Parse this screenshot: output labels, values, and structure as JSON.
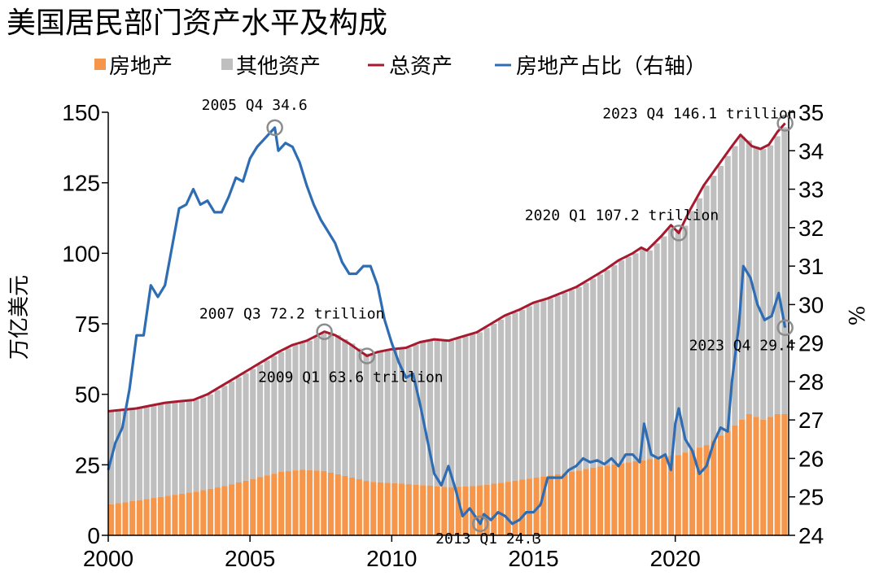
{
  "chart_data": {
    "type": "bar",
    "title": "美国居民部门资产水平及构成",
    "legend": {
      "position": "top",
      "items": [
        {
          "label": "房地产",
          "color": "#F5964B",
          "marker": "square"
        },
        {
          "label": "其他资产",
          "color": "#BFBFBF",
          "marker": "square"
        },
        {
          "label": "总资产",
          "color": "#A6192E",
          "marker": "line"
        },
        {
          "label": "房地产占比（右轴）",
          "color": "#2E6DB4",
          "marker": "line"
        }
      ]
    },
    "ylabel_left": "万亿美元",
    "ylabel_right": "%",
    "ylim_left": [
      0,
      150
    ],
    "ylim_right": [
      24,
      35
    ],
    "xlim": [
      2000,
      2024
    ],
    "xticks": [
      "2000",
      "2005",
      "2010",
      "2015",
      "2020"
    ],
    "yticks_left": [
      "0",
      "25",
      "50",
      "75",
      "100",
      "125",
      "150"
    ],
    "yticks_right": [
      "24",
      "25",
      "26",
      "27",
      "28",
      "29",
      "30",
      "31",
      "32",
      "33",
      "34",
      "35"
    ],
    "annotations": [
      {
        "text": "2005 Q4 34.6",
        "x": 2005.875,
        "y": 34.6,
        "axis": "right"
      },
      {
        "text": "2007 Q3 72.2 trillion",
        "x": 2007.625,
        "y": 72.2,
        "axis": "left"
      },
      {
        "text": "2009 Q1 63.6 trillion",
        "x": 2009.125,
        "y": 63.6,
        "axis": "left"
      },
      {
        "text": "2013 Q1 24.3",
        "x": 2013.125,
        "y": 24.3,
        "axis": "right"
      },
      {
        "text": "2020 Q1 107.2 trillion",
        "x": 2020.125,
        "y": 107.2,
        "axis": "left"
      },
      {
        "text": "2023 Q4 146.1 trillion",
        "x": 2023.875,
        "y": 146.1,
        "axis": "left"
      },
      {
        "text": "2023 Q4 29.4",
        "x": 2023.875,
        "y": 29.4,
        "axis": "right"
      }
    ],
    "series": [
      {
        "name": "房地产",
        "axis": "left",
        "points": [
          [
            2000,
            11
          ],
          [
            2001,
            12.5
          ],
          [
            2002,
            14
          ],
          [
            2003,
            15.5
          ],
          [
            2004,
            17.5
          ],
          [
            2005,
            20
          ],
          [
            2006,
            22.5
          ],
          [
            2006.75,
            23.3
          ],
          [
            2007.5,
            22.8
          ],
          [
            2008.5,
            20.5
          ],
          [
            2009.125,
            19
          ],
          [
            2010,
            18.5
          ],
          [
            2011,
            17.8
          ],
          [
            2012,
            17
          ],
          [
            2013.125,
            17.8
          ],
          [
            2014,
            19
          ],
          [
            2015,
            20.5
          ],
          [
            2016,
            22
          ],
          [
            2017,
            24
          ],
          [
            2018,
            25.5
          ],
          [
            2019,
            27
          ],
          [
            2020,
            28.5
          ],
          [
            2021,
            32
          ],
          [
            2021.75,
            37
          ],
          [
            2022.5,
            43
          ],
          [
            2023,
            41
          ],
          [
            2023.5,
            43
          ],
          [
            2023.875,
            43
          ]
        ]
      },
      {
        "name": "总资产",
        "axis": "left",
        "points": [
          [
            2000,
            44
          ],
          [
            2000.5,
            44.5
          ],
          [
            2001,
            45
          ],
          [
            2001.5,
            46
          ],
          [
            2002,
            47
          ],
          [
            2002.5,
            47.5
          ],
          [
            2003,
            48
          ],
          [
            2003.5,
            50
          ],
          [
            2004,
            53
          ],
          [
            2004.5,
            56
          ],
          [
            2005,
            59
          ],
          [
            2005.5,
            62
          ],
          [
            2006,
            65
          ],
          [
            2006.5,
            67.5
          ],
          [
            2007,
            69
          ],
          [
            2007.625,
            72.2
          ],
          [
            2008,
            71
          ],
          [
            2008.5,
            68
          ],
          [
            2009.125,
            63.6
          ],
          [
            2009.5,
            65
          ],
          [
            2010,
            66
          ],
          [
            2010.5,
            66.5
          ],
          [
            2011,
            68.5
          ],
          [
            2011.5,
            69.5
          ],
          [
            2012,
            69
          ],
          [
            2012.5,
            70.5
          ],
          [
            2013,
            72
          ],
          [
            2013.5,
            75
          ],
          [
            2014,
            78
          ],
          [
            2014.5,
            80
          ],
          [
            2015,
            82.5
          ],
          [
            2015.5,
            84
          ],
          [
            2016,
            86
          ],
          [
            2016.5,
            88
          ],
          [
            2017,
            91
          ],
          [
            2017.5,
            94
          ],
          [
            2018,
            97.5
          ],
          [
            2018.5,
            100
          ],
          [
            2018.8,
            102
          ],
          [
            2019,
            101
          ],
          [
            2019.5,
            106
          ],
          [
            2019.85,
            110
          ],
          [
            2020.125,
            107.2
          ],
          [
            2020.5,
            115
          ],
          [
            2021,
            124
          ],
          [
            2021.5,
            131
          ],
          [
            2022,
            138
          ],
          [
            2022.3,
            142
          ],
          [
            2022.7,
            138
          ],
          [
            2023,
            137
          ],
          [
            2023.3,
            138.5
          ],
          [
            2023.6,
            143
          ],
          [
            2023.875,
            146.1
          ]
        ]
      },
      {
        "name": "房地产占比（右轴）",
        "axis": "right",
        "points": [
          [
            2000,
            25.7
          ],
          [
            2000.25,
            26.4
          ],
          [
            2000.5,
            26.8
          ],
          [
            2000.75,
            27.8
          ],
          [
            2001,
            29.2
          ],
          [
            2001.25,
            29.2
          ],
          [
            2001.5,
            30.5
          ],
          [
            2001.75,
            30.2
          ],
          [
            2002,
            30.5
          ],
          [
            2002.25,
            31.5
          ],
          [
            2002.5,
            32.5
          ],
          [
            2002.75,
            32.6
          ],
          [
            2003,
            33.0
          ],
          [
            2003.25,
            32.6
          ],
          [
            2003.5,
            32.7
          ],
          [
            2003.75,
            32.4
          ],
          [
            2004,
            32.4
          ],
          [
            2004.25,
            32.8
          ],
          [
            2004.5,
            33.3
          ],
          [
            2004.75,
            33.2
          ],
          [
            2005,
            33.8
          ],
          [
            2005.25,
            34.1
          ],
          [
            2005.5,
            34.3
          ],
          [
            2005.875,
            34.6
          ],
          [
            2006,
            34.0
          ],
          [
            2006.25,
            34.2
          ],
          [
            2006.5,
            34.1
          ],
          [
            2006.75,
            33.7
          ],
          [
            2007,
            33.1
          ],
          [
            2007.25,
            32.6
          ],
          [
            2007.5,
            32.2
          ],
          [
            2007.75,
            31.9
          ],
          [
            2008,
            31.6
          ],
          [
            2008.25,
            31.1
          ],
          [
            2008.5,
            30.8
          ],
          [
            2008.75,
            30.8
          ],
          [
            2009,
            31.0
          ],
          [
            2009.25,
            31.0
          ],
          [
            2009.5,
            30.5
          ],
          [
            2009.75,
            29.6
          ],
          [
            2010,
            29.0
          ],
          [
            2010.25,
            28.5
          ],
          [
            2010.5,
            28.1
          ],
          [
            2010.75,
            28.2
          ],
          [
            2011,
            27.4
          ],
          [
            2011.25,
            26.5
          ],
          [
            2011.5,
            25.6
          ],
          [
            2011.75,
            25.3
          ],
          [
            2012,
            25.8
          ],
          [
            2012.25,
            25.2
          ],
          [
            2012.5,
            24.5
          ],
          [
            2012.75,
            24.7
          ],
          [
            2013.125,
            24.3
          ],
          [
            2013.25,
            24.55
          ],
          [
            2013.5,
            24.4
          ],
          [
            2013.75,
            24.6
          ],
          [
            2014,
            24.5
          ],
          [
            2014.25,
            24.3
          ],
          [
            2014.5,
            24.4
          ],
          [
            2014.75,
            24.6
          ],
          [
            2015,
            24.6
          ],
          [
            2015.25,
            24.8
          ],
          [
            2015.5,
            25.5
          ],
          [
            2015.75,
            25.5
          ],
          [
            2016,
            25.5
          ],
          [
            2016.25,
            25.7
          ],
          [
            2016.5,
            25.8
          ],
          [
            2016.75,
            26.0
          ],
          [
            2017,
            25.9
          ],
          [
            2017.25,
            25.95
          ],
          [
            2017.5,
            25.85
          ],
          [
            2017.75,
            26.0
          ],
          [
            2018,
            25.8
          ],
          [
            2018.25,
            26.1
          ],
          [
            2018.5,
            26.1
          ],
          [
            2018.75,
            25.9
          ],
          [
            2018.9,
            26.9
          ],
          [
            2019.15,
            26.1
          ],
          [
            2019.4,
            26.0
          ],
          [
            2019.65,
            26.1
          ],
          [
            2019.85,
            25.7
          ],
          [
            2020,
            26.9
          ],
          [
            2020.125,
            27.3
          ],
          [
            2020.35,
            26.5
          ],
          [
            2020.6,
            26.2
          ],
          [
            2020.85,
            25.6
          ],
          [
            2021.1,
            25.8
          ],
          [
            2021.35,
            26.4
          ],
          [
            2021.6,
            26.8
          ],
          [
            2021.85,
            26.7
          ],
          [
            2022,
            28.0
          ],
          [
            2022.25,
            29.5
          ],
          [
            2022.4,
            31.0
          ],
          [
            2022.65,
            30.7
          ],
          [
            2022.9,
            30.0
          ],
          [
            2023.15,
            29.6
          ],
          [
            2023.4,
            29.7
          ],
          [
            2023.65,
            30.3
          ],
          [
            2023.875,
            29.4
          ]
        ]
      }
    ]
  }
}
